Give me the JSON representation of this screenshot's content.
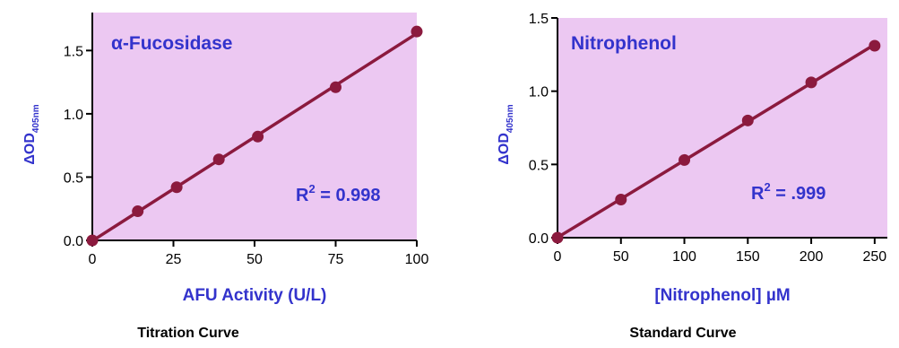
{
  "colors": {
    "plot_bg": "#ecc8f2",
    "line": "#8b1a3e",
    "marker": "#8b1a3e",
    "text_blue": "#3333cc",
    "axis": "#000000",
    "caption": "#000000"
  },
  "chart_data": [
    {
      "type": "scatter",
      "title": "α-Fucosidase",
      "xlabel": "AFU Activity (U/L)",
      "ylabel_main": "ΔOD",
      "ylabel_sub": "405nm",
      "caption": "Titration Curve",
      "annotation_prefix": "R",
      "annotation_sup": "2",
      "annotation_value": " = 0.998",
      "xlim": [
        0,
        100
      ],
      "ylim": [
        0,
        1.8
      ],
      "xticks": [
        0,
        25,
        50,
        75,
        100
      ],
      "xtick_labels": [
        "0",
        "25",
        "50",
        "75",
        "100"
      ],
      "yticks": [
        0,
        0.5,
        1.0,
        1.5
      ],
      "ytick_labels": [
        "0.0",
        "0.5",
        "1.0",
        "1.5"
      ],
      "x": [
        0,
        14,
        26,
        39,
        51,
        75,
        100
      ],
      "y": [
        0,
        0.23,
        0.42,
        0.64,
        0.82,
        1.21,
        1.65
      ],
      "fit_line": true
    },
    {
      "type": "scatter",
      "title": "Nitrophenol",
      "xlabel": "[Nitrophenol] µM",
      "ylabel_main": "ΔOD",
      "ylabel_sub": "405nm",
      "caption": "Standard Curve",
      "annotation_prefix": "R",
      "annotation_sup": "2",
      "annotation_value": " = .999",
      "xlim": [
        0,
        260
      ],
      "ylim": [
        0,
        1.5
      ],
      "xticks": [
        0,
        50,
        100,
        150,
        200,
        250
      ],
      "xtick_labels": [
        "0",
        "50",
        "100",
        "150",
        "200",
        "250"
      ],
      "yticks": [
        0,
        0.5,
        1.0,
        1.5
      ],
      "ytick_labels": [
        "0.0",
        "0.5",
        "1.0",
        "1.5"
      ],
      "x": [
        0,
        50,
        100,
        150,
        200,
        250
      ],
      "y": [
        0,
        0.26,
        0.53,
        0.8,
        1.06,
        1.31
      ],
      "fit_line": true
    }
  ]
}
